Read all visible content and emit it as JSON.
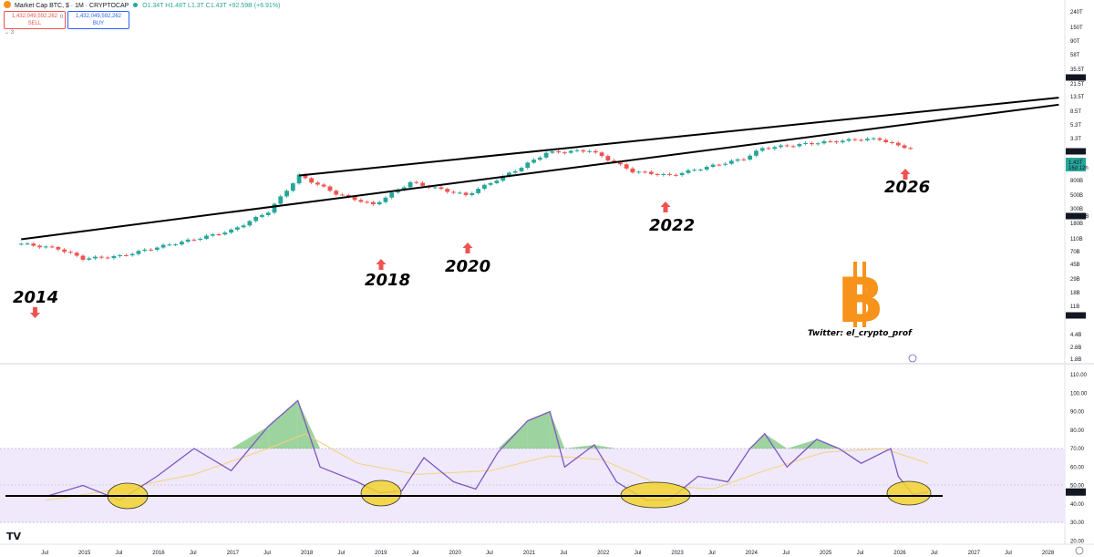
{
  "header": {
    "title": "Market Cap BTC, $ · 1M · CRYPTOCAP",
    "ohlc": "O1.34T H1.48T L1.3T C1.43T +92.59B (+6.91%)",
    "sell_value": "1,432,049,592,262",
    "sell_label": "SELL",
    "mid_value": "0",
    "buy_value": "1,432,049,592,262",
    "buy_label": "BUY",
    "collapse": "3"
  },
  "price_axis": [
    "240T",
    "150T",
    "90T",
    "58T",
    "35.5T",
    "21.5T",
    "13.5T",
    "8.5T",
    "5.3T",
    "3.3T",
    "800B",
    "500B",
    "300B",
    "180B",
    "110B",
    "70B",
    "45B",
    "29B",
    "18B",
    "11B",
    "4.4B",
    "2.8B",
    "1.8B"
  ],
  "price_markers": {
    "upper_line": "26.91T",
    "level_2_13": "2.13T",
    "current": "1.43T",
    "countdown": "16d 12h",
    "level_235": "235.99B",
    "level_784": "7.84B"
  },
  "rsi_axis": [
    "110.00",
    "100.00",
    "90.00",
    "80.00",
    "70.00",
    "60.00",
    "50.00",
    "40.00",
    "30.00",
    "20.00"
  ],
  "rsi_current": "46.43",
  "time_axis": [
    "Jul",
    "2015",
    "Jul",
    "2016",
    "Jul",
    "2017",
    "Jul",
    "2018",
    "Jul",
    "2019",
    "Jul",
    "2020",
    "Jul",
    "2021",
    "Jul",
    "2022",
    "Jul",
    "2023",
    "Jul",
    "2024",
    "Jul",
    "2025",
    "Jul",
    "2026",
    "Jul",
    "2027",
    "Jul",
    "2028"
  ],
  "annotations": {
    "y2014": "2014",
    "y2018": "2018",
    "y2020": "2020",
    "y2022": "2022",
    "y2026": "2026",
    "twitter": "Twitter: el_crypto_prof",
    "bitcoin_symbol": "B"
  },
  "colors": {
    "up": "#26a69a",
    "down": "#ef5350",
    "rsi": "#7e57c2",
    "rsi_ma": "#f5d27a",
    "band": "#efe9fb",
    "bitcoin": "#f7931a",
    "highlight": "#f2d22e"
  },
  "tradingview_logo": "TV",
  "chart_data": [
    {
      "type": "candlestick",
      "title": "Market Cap BTC, $ · 1M · CRYPTOCAP",
      "yscale": "log",
      "x_range": [
        "2014-03",
        "2028-03"
      ],
      "ylim_label_range": [
        "1.8B",
        "240T"
      ],
      "series_path": [
        [
          "2014-03",
          7840000000.0
        ],
        [
          "2014-09",
          6000000000.0
        ],
        [
          "2015-01",
          3500000000.0
        ],
        [
          "2015-07",
          4000000000.0
        ],
        [
          "2016-01",
          6500000000.0
        ],
        [
          "2016-07",
          10000000000.0
        ],
        [
          "2017-01",
          16000000000.0
        ],
        [
          "2017-07",
          45000000000.0
        ],
        [
          "2017-12",
          320000000000.0
        ],
        [
          "2018-06",
          120000000000.0
        ],
        [
          "2018-12",
          65000000000.0
        ],
        [
          "2019-06",
          220000000000.0
        ],
        [
          "2020-03",
          110000000000.0
        ],
        [
          "2020-12",
          500000000000.0
        ],
        [
          "2021-04",
          1100000000000.0
        ],
        [
          "2021-11",
          1250000000000.0
        ],
        [
          "2022-06",
          400000000000.0
        ],
        [
          "2022-12",
          320000000000.0
        ],
        [
          "2023-12",
          800000000000.0
        ],
        [
          "2024-03",
          1400000000000.0
        ],
        [
          "2024-12",
          1900000000000.0
        ],
        [
          "2025-07",
          2300000000000.0
        ],
        [
          "2025-10",
          2300000000000.0
        ],
        [
          "2026-01",
          1600000000000.0
        ],
        [
          "2026-03",
          1430000000000.0
        ]
      ],
      "channel_lines": [
        {
          "from": [
            "2014-03",
            10000000000.0
          ],
          "to": [
            "2028-03",
            15000000000000.0
          ]
        },
        {
          "from": [
            "2017-12",
            320000000000.0
          ],
          "to": [
            "2028-03",
            22000000000000.0
          ]
        }
      ],
      "legend": "none",
      "grid": false
    },
    {
      "type": "line",
      "title": "RSI",
      "ylim": [
        10,
        110
      ],
      "series": [
        {
          "values": [
            [
              2014.5,
              44
            ],
            [
              2015.0,
              50
            ],
            [
              2015.5,
              42
            ],
            [
              2016.0,
              55
            ],
            [
              2016.5,
              70
            ],
            [
              2017.0,
              58
            ],
            [
              2017.5,
              82
            ],
            [
              2017.9,
              96
            ],
            [
              2018.2,
              60
            ],
            [
              2018.7,
              52
            ],
            [
              2019.0,
              46
            ],
            [
              2019.3,
              47
            ],
            [
              2019.6,
              65
            ],
            [
              2020.0,
              52
            ],
            [
              2020.3,
              48
            ],
            [
              2020.6,
              68
            ],
            [
              2021.0,
              85
            ],
            [
              2021.3,
              90
            ],
            [
              2021.5,
              60
            ],
            [
              2021.9,
              72
            ],
            [
              2022.2,
              52
            ],
            [
              2022.6,
              42
            ],
            [
              2022.9,
              42
            ],
            [
              2023.3,
              55
            ],
            [
              2023.7,
              52
            ],
            [
              2024.0,
              70
            ],
            [
              2024.2,
              78
            ],
            [
              2024.5,
              60
            ],
            [
              2024.9,
              75
            ],
            [
              2025.2,
              70
            ],
            [
              2025.5,
              62
            ],
            [
              2025.9,
              70
            ],
            [
              2026.0,
              55
            ],
            [
              2026.2,
              45
            ],
            [
              2026.4,
              46.43
            ]
          ]
        },
        {
          "values": [
            [
              2014.5,
              42
            ],
            [
              2015.5,
              48
            ],
            [
              2016.5,
              56
            ],
            [
              2017.5,
              70
            ],
            [
              2018.0,
              78
            ],
            [
              2018.7,
              62
            ],
            [
              2019.5,
              56
            ],
            [
              2020.5,
              58
            ],
            [
              2021.3,
              66
            ],
            [
              2022.0,
              64
            ],
            [
              2022.8,
              50
            ],
            [
              2023.5,
              48
            ],
            [
              2024.2,
              58
            ],
            [
              2025.0,
              68
            ],
            [
              2025.8,
              70
            ],
            [
              2026.4,
              62
            ]
          ]
        }
      ],
      "bands": [
        30,
        70
      ],
      "current": 46.43
    }
  ]
}
